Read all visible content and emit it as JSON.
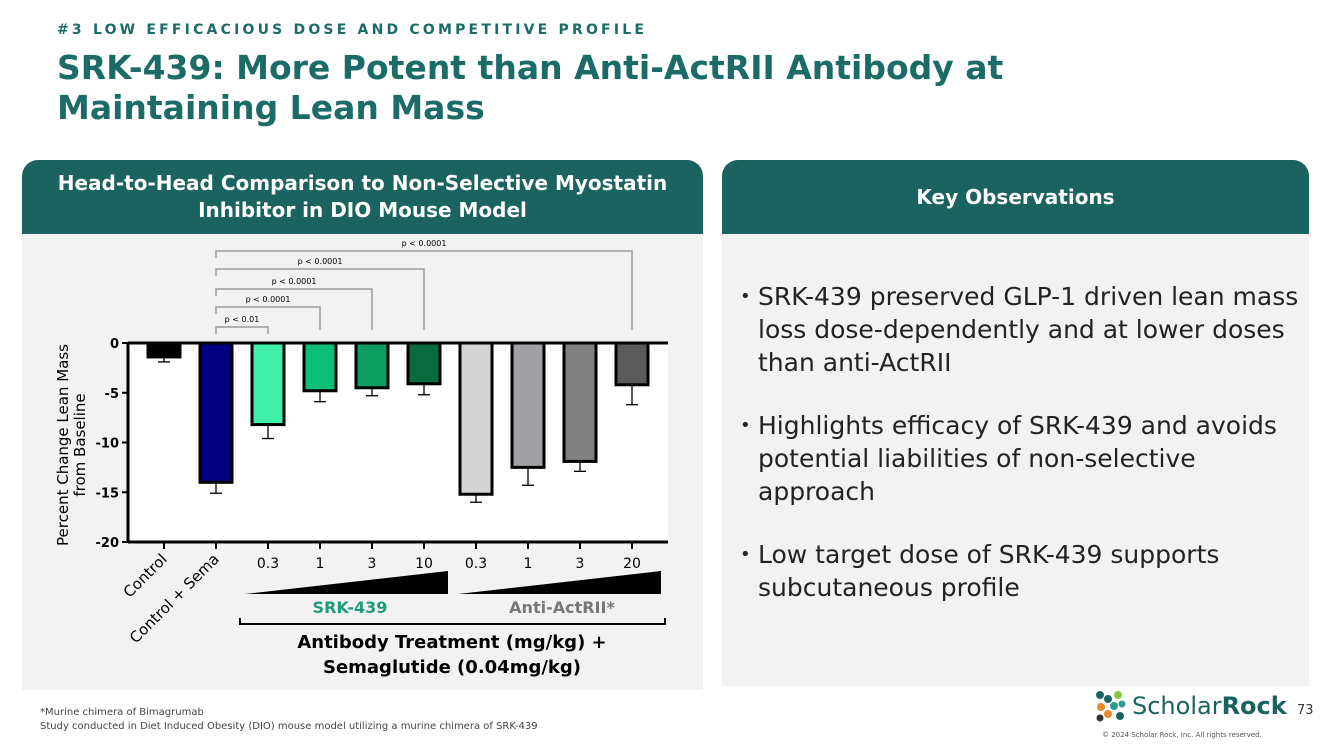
{
  "header": {
    "kicker": "#3 LOW EFFICACIOUS DOSE AND COMPETITIVE PROFILE",
    "title": "SRK-439: More Potent than Anti-ActRII Antibody at Maintaining Lean Mass"
  },
  "left_panel": {
    "title": "Head-to-Head Comparison to Non-Selective Myostatin Inhibitor in DIO Mouse Model"
  },
  "right_panel": {
    "title": "Key Observations",
    "bullets": [
      "SRK-439 preserved GLP-1 driven lean mass loss dose-dependently and at lower doses than anti-ActRII",
      "Highlights efficacy of SRK-439 and avoids potential liabilities of non-selective approach",
      "Low target dose of SRK-439 supports subcutaneous profile"
    ]
  },
  "footnotes": [
    "*Murine chimera of Bimagrumab",
    "Study conducted in Diet Induced Obesity (DIO) mouse model utilizing a murine chimera of SRK-439"
  ],
  "page_number": "73",
  "logo": {
    "text_light": "Scholar",
    "text_bold": "Rock",
    "copyright": "© 2024 Scholar Rock, Inc. All rights reserved."
  },
  "chart_data": {
    "type": "bar",
    "ylabel": "Percent Change Lean Mass from Baseline",
    "ylim": [
      -20,
      0
    ],
    "yticks": [
      0,
      -5,
      -10,
      -15,
      -20
    ],
    "categories": [
      "Control",
      "Control + Sema",
      "0.3",
      "1",
      "3",
      "10",
      "0.3",
      "1",
      "3",
      "20"
    ],
    "values": [
      -1.4,
      -14.0,
      -8.2,
      -4.8,
      -4.5,
      -4.1,
      -15.2,
      -12.5,
      -11.9,
      -4.2
    ],
    "error": [
      0.5,
      1.1,
      1.4,
      1.1,
      0.8,
      1.1,
      0.8,
      1.8,
      1.0,
      2.0
    ],
    "colors": [
      "#000000",
      "#000080",
      "#40f0a8",
      "#0bbf78",
      "#0d9c62",
      "#0a6a42",
      "#d4d4d4",
      "#a0a0a4",
      "#808080",
      "#5a5a5a"
    ],
    "comparisons": [
      {
        "from": 1,
        "to": 2,
        "label": "p < 0.01"
      },
      {
        "from": 1,
        "to": 3,
        "label": "p < 0.0001"
      },
      {
        "from": 1,
        "to": 4,
        "label": "p < 0.0001"
      },
      {
        "from": 1,
        "to": 5,
        "label": "p < 0.0001"
      },
      {
        "from": 1,
        "to": 9,
        "label": "p < 0.0001"
      }
    ],
    "groups": [
      {
        "name": "SRK-439",
        "color": "#1f9a7d"
      },
      {
        "name": "Anti-ActRII*",
        "color": "#777777"
      }
    ],
    "xlabel": [
      "Antibody Treatment (mg/kg) +",
      "Semaglutide (0.04mg/kg)"
    ]
  }
}
